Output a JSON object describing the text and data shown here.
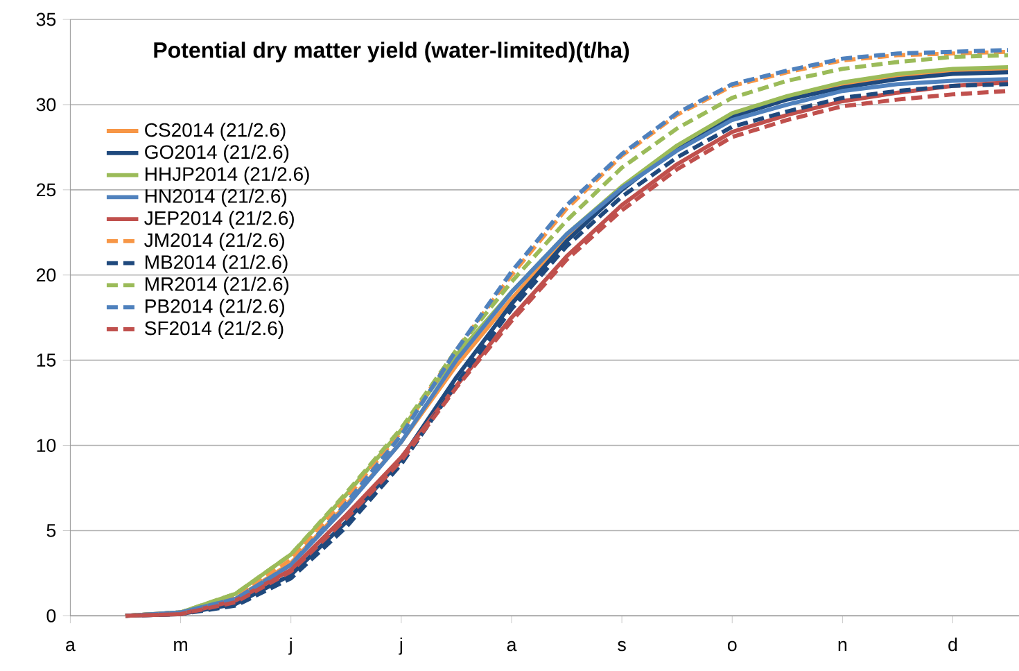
{
  "chart_data": {
    "type": "line",
    "title": "Potential dry matter yield (water-limited)(t/ha)",
    "categories": [
      "a",
      null,
      "m",
      null,
      "j",
      null,
      "j",
      null,
      "a",
      null,
      "s",
      null,
      "o",
      null,
      "n",
      null,
      "d",
      null
    ],
    "ylim": [
      0,
      35
    ],
    "yticks": [
      0,
      5,
      10,
      15,
      20,
      25,
      30,
      35
    ],
    "grid": "y",
    "legend": "top left",
    "series": [
      {
        "name": "CS2014 (21/2.6)",
        "color": "#f79646",
        "line_style": "solid",
        "values": [
          null,
          0,
          0.2,
          1.0,
          3.1,
          6.5,
          10.2,
          14.7,
          18.6,
          22.2,
          25.1,
          27.5,
          29.4,
          30.4,
          31.2,
          31.7,
          32.0,
          32.1
        ]
      },
      {
        "name": "GO2014 (21/2.6)",
        "color": "#1f497d",
        "line_style": "solid",
        "values": [
          null,
          0,
          0.1,
          0.7,
          2.4,
          5.5,
          9.2,
          14.0,
          18.3,
          22.0,
          25.0,
          27.5,
          29.3,
          30.3,
          31.0,
          31.5,
          31.8,
          31.9
        ]
      },
      {
        "name": "HHJP2014 (21/2.6)",
        "color": "#9bbb59",
        "line_style": "solid",
        "values": [
          null,
          0,
          0.2,
          1.3,
          3.6,
          7.1,
          10.9,
          15.3,
          19.0,
          22.4,
          25.2,
          27.6,
          29.5,
          30.5,
          31.3,
          31.8,
          32.1,
          32.2
        ]
      },
      {
        "name": "HN2014 (21/2.6)",
        "color": "#4f81bd",
        "line_style": "solid",
        "values": [
          null,
          0,
          0.2,
          1.0,
          3.0,
          6.4,
          10.2,
          15.0,
          19.0,
          22.4,
          25.1,
          27.3,
          29.1,
          30.0,
          30.8,
          31.2,
          31.4,
          31.5
        ]
      },
      {
        "name": "JEP2014 (21/2.6)",
        "color": "#c0504d",
        "line_style": "solid",
        "values": [
          null,
          0,
          0.1,
          0.9,
          2.7,
          5.9,
          9.3,
          13.5,
          17.5,
          21.1,
          24.1,
          26.5,
          28.4,
          29.4,
          30.2,
          30.7,
          31.1,
          31.3
        ]
      },
      {
        "name": "JM2014 (21/2.6)",
        "color": "#f79646",
        "line_style": "dashed",
        "values": [
          null,
          0,
          0.2,
          1.1,
          3.3,
          6.9,
          10.8,
          15.6,
          20.0,
          23.9,
          27.0,
          29.4,
          31.1,
          31.9,
          32.6,
          32.9,
          33.0,
          33.1
        ]
      },
      {
        "name": "MB2014 (21/2.6)",
        "color": "#1f497d",
        "line_style": "dashed",
        "values": [
          null,
          0,
          0.1,
          0.6,
          2.2,
          5.2,
          8.9,
          13.6,
          18.0,
          21.7,
          24.6,
          26.9,
          28.7,
          29.6,
          30.4,
          30.8,
          31.1,
          31.2
        ]
      },
      {
        "name": "MR2014 (21/2.6)",
        "color": "#9bbb59",
        "line_style": "dashed",
        "values": [
          null,
          0,
          0.2,
          1.3,
          3.6,
          7.2,
          11.0,
          15.6,
          19.6,
          23.2,
          26.3,
          28.6,
          30.4,
          31.4,
          32.1,
          32.5,
          32.8,
          32.9
        ]
      },
      {
        "name": "PB2014 (21/2.6)",
        "color": "#4f81bd",
        "line_style": "dashed",
        "values": [
          null,
          0,
          0.2,
          1.0,
          3.0,
          6.6,
          10.6,
          15.6,
          20.2,
          24.1,
          27.1,
          29.5,
          31.2,
          32.0,
          32.7,
          33.0,
          33.1,
          33.2
        ]
      },
      {
        "name": "SF2014 (21/2.6)",
        "color": "#c0504d",
        "line_style": "dashed",
        "values": [
          null,
          0,
          0.1,
          0.8,
          2.6,
          5.7,
          9.1,
          13.4,
          17.3,
          20.9,
          23.8,
          26.2,
          28.1,
          29.1,
          29.9,
          30.3,
          30.6,
          30.8
        ]
      }
    ]
  }
}
